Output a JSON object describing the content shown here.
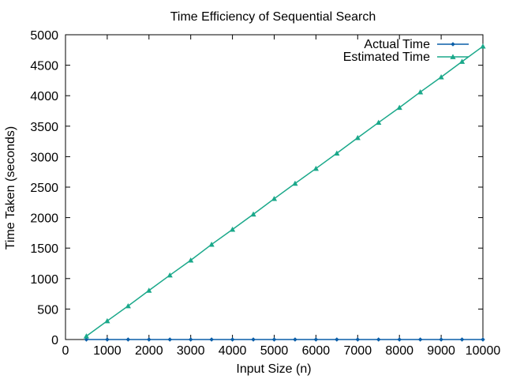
{
  "chart_data": {
    "type": "line",
    "title": "Time Efficiency of Sequential Search",
    "xlabel": "Input Size (n)",
    "ylabel": "Time Taken (seconds)",
    "xlim": [
      0,
      10000
    ],
    "ylim": [
      0,
      5000
    ],
    "xticks": [
      0,
      1000,
      2000,
      3000,
      4000,
      5000,
      6000,
      7000,
      8000,
      9000,
      10000
    ],
    "yticks": [
      0,
      500,
      1000,
      1500,
      2000,
      2500,
      3000,
      3500,
      4000,
      4500,
      5000
    ],
    "x": [
      500,
      1000,
      1500,
      2000,
      2500,
      3000,
      3500,
      4000,
      4500,
      5000,
      5500,
      6000,
      6500,
      7000,
      7500,
      8000,
      8500,
      9000,
      9500,
      10000
    ],
    "grid": false,
    "legend_position": "top-right",
    "series": [
      {
        "name": "Actual Time",
        "color": "#0a5ea8",
        "marker": "diamond",
        "values": [
          0,
          0,
          0,
          0,
          0,
          0,
          0,
          0,
          0,
          0,
          0,
          0,
          0,
          0,
          0,
          0,
          0,
          0,
          0,
          0
        ]
      },
      {
        "name": "Estimated Time",
        "color": "#1aa88a",
        "marker": "triangle",
        "values": [
          55,
          305,
          550,
          805,
          1055,
          1300,
          1560,
          1805,
          2055,
          2310,
          2560,
          2805,
          3055,
          3310,
          3560,
          3805,
          4060,
          4305,
          4560,
          4810
        ]
      }
    ]
  }
}
